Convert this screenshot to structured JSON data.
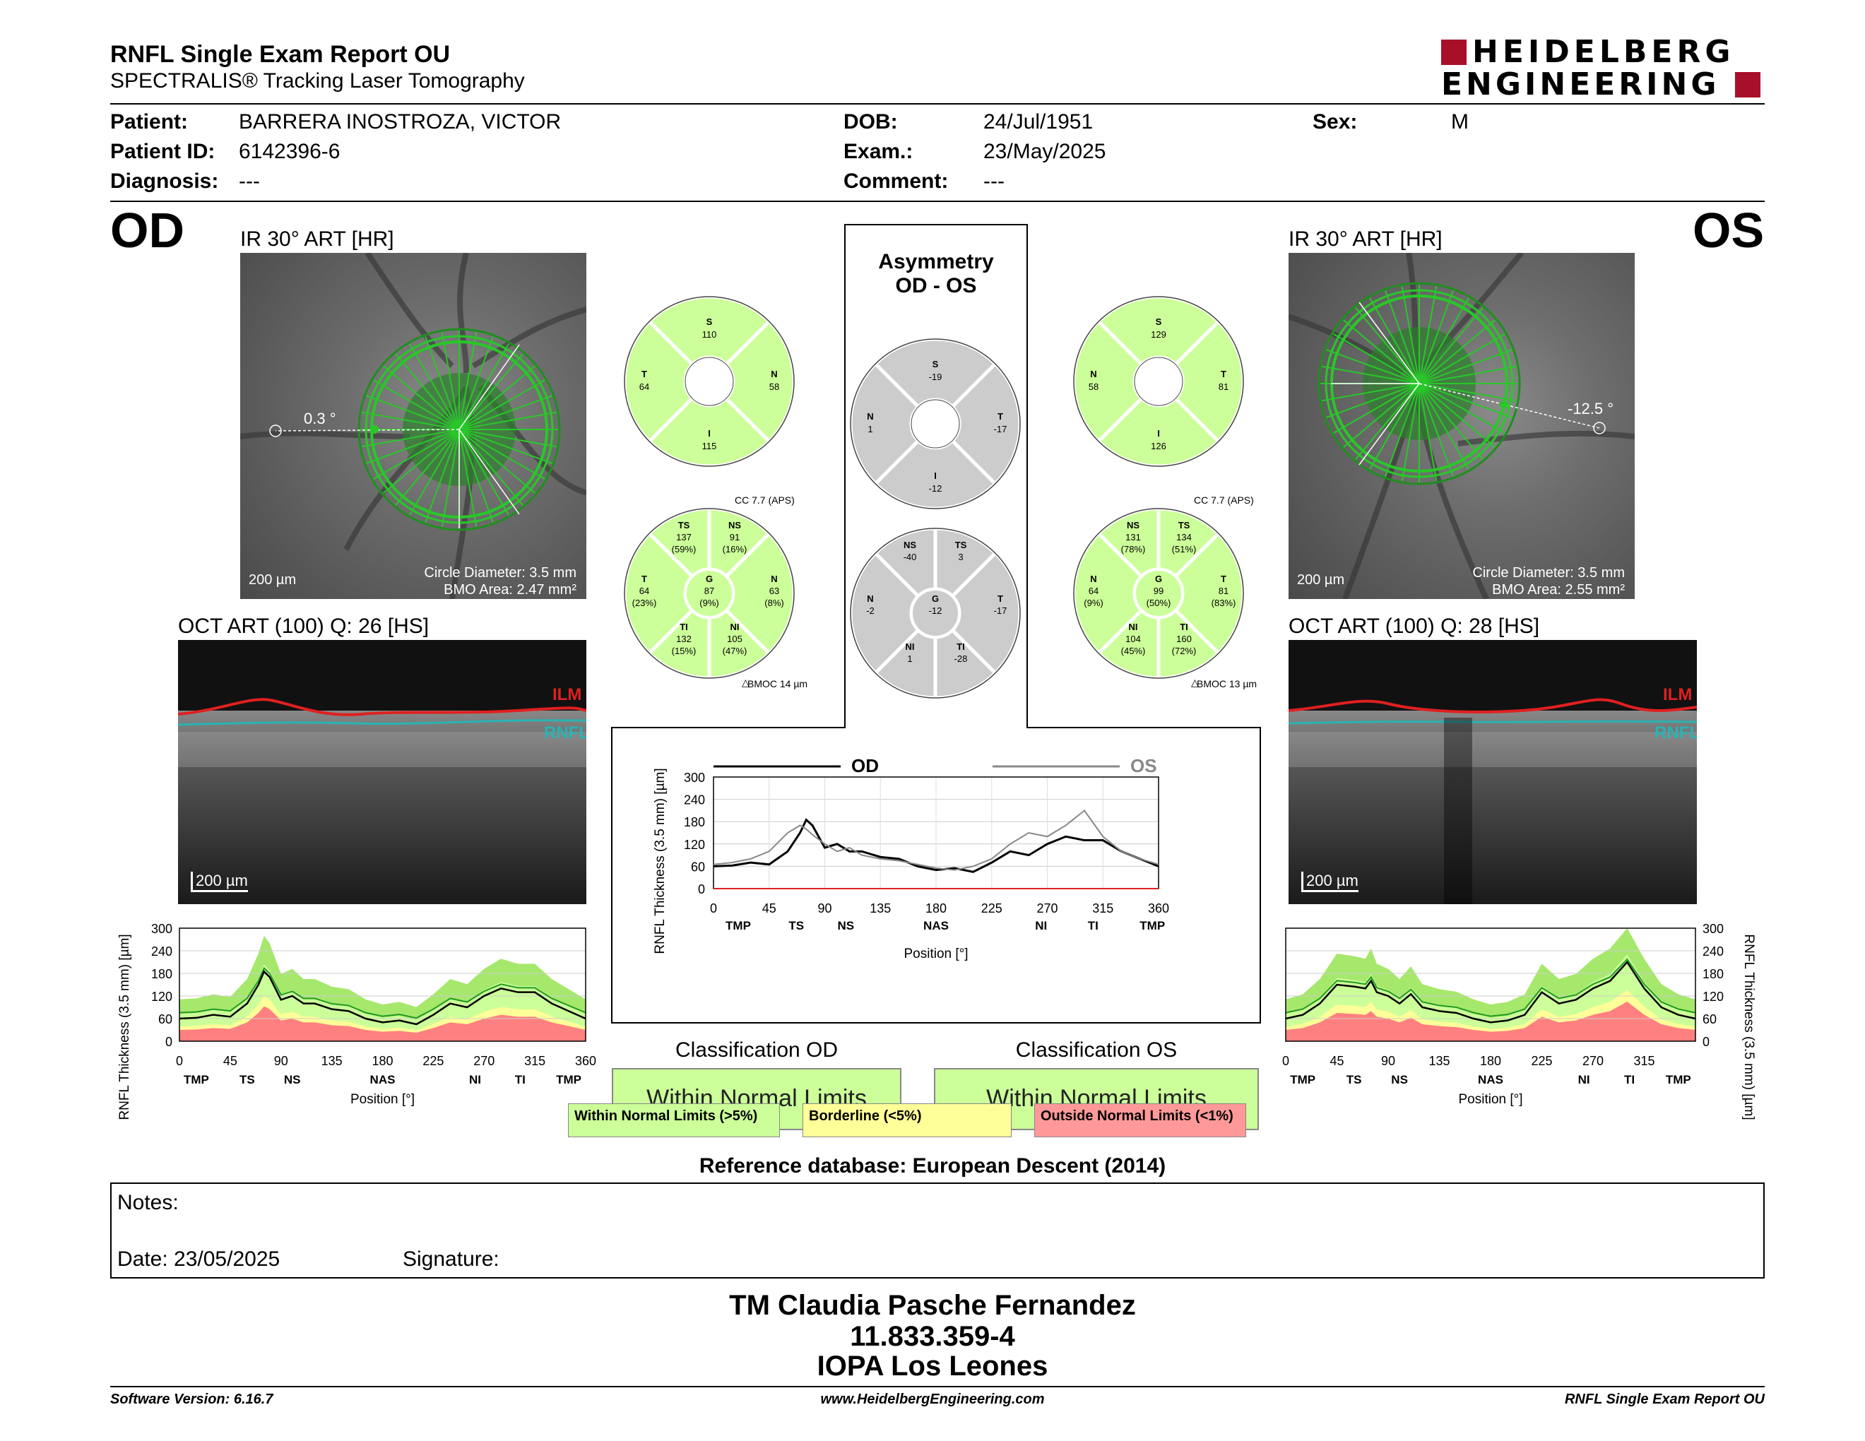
{
  "header": {
    "title": "RNFL Single Exam Report OU",
    "subtitle": "SPECTRALIS® Tracking Laser Tomography",
    "logo_line1": "HEIDELBERG",
    "logo_line2": "ENGINEERING"
  },
  "patient": {
    "name_label": "Patient:",
    "name": "BARRERA INOSTROZA, VICTOR",
    "id_label": "Patient ID:",
    "id": "6142396-6",
    "diag_label": "Diagnosis:",
    "diag": "---",
    "dob_label": "DOB:",
    "dob": "24/Jul/1951",
    "exam_label": "Exam.:",
    "exam": "23/May/2025",
    "comment_label": "Comment:",
    "comment": "---",
    "sex_label": "Sex:",
    "sex": "M"
  },
  "od": {
    "eye": "OD",
    "ir_title": "IR 30° ART [HR]",
    "angle": "0.3 °",
    "scale": "200 µm",
    "circle_diameter": "Circle Diameter: 3.5 mm",
    "bmo_area": "BMO Area: 2.47 mm²",
    "oct_title": "OCT ART (100) Q: 26 [HS]",
    "oct_scale": "200 µm",
    "ilm": "ILM",
    "rnfl": "RNFL",
    "sectors6": {
      "S": "110",
      "T": "64",
      "N": "58",
      "I": "115"
    },
    "cc": "CC 7.7 (APS)",
    "bmoc": "BMOC 14 µm",
    "sectors": {
      "TS": [
        "137",
        "(59%)"
      ],
      "NS": [
        "91",
        "(16%)"
      ],
      "T": [
        "64",
        "(23%)"
      ],
      "G": [
        "87",
        "(9%)"
      ],
      "N": [
        "63",
        "(8%)"
      ],
      "TI": [
        "132",
        "(15%)"
      ],
      "NI": [
        "105",
        "(47%)"
      ]
    },
    "classification_title": "Classification OD",
    "classification": "Within Normal Limits"
  },
  "os": {
    "eye": "OS",
    "ir_title": "IR 30° ART [HR]",
    "angle": "-12.5 °",
    "scale": "200 µm",
    "circle_diameter": "Circle Diameter: 3.5 mm",
    "bmo_area": "BMO Area: 2.55 mm²",
    "oct_title": "OCT ART (100) Q: 28 [HS]",
    "oct_scale": "200 µm",
    "ilm": "ILM",
    "rnfl": "RNFL",
    "sectors6": {
      "S": "129",
      "N": "58",
      "T": "81",
      "I": "126"
    },
    "cc": "CC 7.7 (APS)",
    "bmoc": "BMOC 13 µm",
    "sectors": {
      "NS": [
        "131",
        "(78%)"
      ],
      "TS": [
        "134",
        "(51%)"
      ],
      "N": [
        "64",
        "(9%)"
      ],
      "G": [
        "99",
        "(50%)"
      ],
      "T": [
        "81",
        "(83%)"
      ],
      "NI": [
        "104",
        "(45%)"
      ],
      "TI": [
        "160",
        "(72%)"
      ]
    },
    "classification_title": "Classification OS",
    "classification": "Within Normal Limits"
  },
  "asymmetry": {
    "title1": "Asymmetry",
    "title2": "OD - OS",
    "sectors6": {
      "S": "-19",
      "N": "1",
      "T": "-17",
      "I": "-12"
    },
    "sectors": {
      "NS": "-40",
      "TS": "3",
      "N": "-2",
      "G": "-12",
      "T": "-17",
      "NI": "1",
      "TI": "-28"
    }
  },
  "legend": {
    "wnl": "Within Normal Limits (>5%)",
    "bl": "Borderline (<5%)",
    "onl": "Outside Normal Limits (<1%)"
  },
  "colors": {
    "wnl": "#ccff99",
    "bl": "#ffff99",
    "onl": "#ff9999",
    "green": "#1f9a1f",
    "gray": "#cccccc"
  },
  "reference_db": "Reference database: European Descent (2014)",
  "notes": {
    "label": "Notes:",
    "date": "Date: 23/05/2025",
    "signature": "Signature:"
  },
  "operator": {
    "line1": "TM Claudia Pasche Fernandez",
    "line2": "11.833.359-4",
    "line3": "IOPA Los Leones"
  },
  "footer": {
    "left": "Software Version: 6.16.7",
    "center": "www.HeidelbergEngineering.com",
    "right": "RNFL Single Exam Report OU"
  },
  "chart_data": [
    {
      "type": "line",
      "title": "",
      "legend": [
        "OD",
        "OS"
      ],
      "xlabel": "Position [°]",
      "ylabel": "RNFL Thickness (3.5 mm) [µm]",
      "xlim": [
        0,
        360
      ],
      "ylim": [
        0,
        300
      ],
      "xticks": [
        0,
        45,
        90,
        135,
        180,
        225,
        270,
        315,
        360
      ],
      "yticks": [
        0,
        60,
        120,
        180,
        240,
        300
      ],
      "sector_labels": [
        {
          "label": "TMP",
          "x": 20
        },
        {
          "label": "TS",
          "x": 67
        },
        {
          "label": "NS",
          "x": 107
        },
        {
          "label": "NAS",
          "x": 180
        },
        {
          "label": "NI",
          "x": 265
        },
        {
          "label": "TI",
          "x": 307
        },
        {
          "label": "TMP",
          "x": 355
        }
      ],
      "x": [
        0,
        15,
        30,
        45,
        60,
        70,
        75,
        80,
        90,
        100,
        110,
        120,
        135,
        150,
        165,
        180,
        195,
        210,
        225,
        240,
        255,
        270,
        285,
        300,
        315,
        330,
        345,
        360
      ],
      "series": [
        {
          "name": "OD",
          "values": [
            60,
            62,
            70,
            65,
            100,
            150,
            185,
            170,
            110,
            120,
            100,
            100,
            85,
            80,
            60,
            50,
            55,
            45,
            70,
            100,
            90,
            120,
            140,
            130,
            130,
            100,
            80,
            60
          ]
        },
        {
          "name": "OS",
          "values": [
            65,
            70,
            80,
            100,
            150,
            170,
            160,
            145,
            120,
            100,
            110,
            90,
            80,
            75,
            65,
            55,
            50,
            60,
            80,
            120,
            150,
            140,
            170,
            210,
            140,
            100,
            80,
            65
          ]
        }
      ]
    },
    {
      "type": "area",
      "title": "",
      "series_name": "OD",
      "xlabel": "Position [°]",
      "ylabel": "RNFL Thickness (3.5 mm) [µm]",
      "xlim": [
        0,
        360
      ],
      "ylim": [
        0,
        300
      ],
      "xticks": [
        0,
        45,
        90,
        135,
        180,
        225,
        270,
        315,
        360
      ],
      "yticks": [
        0,
        60,
        120,
        180,
        240,
        300
      ],
      "sector_labels": [
        {
          "label": "TMP",
          "x": 15
        },
        {
          "label": "TS",
          "x": 60
        },
        {
          "label": "NS",
          "x": 100
        },
        {
          "label": "NAS",
          "x": 180
        },
        {
          "label": "NI",
          "x": 262
        },
        {
          "label": "TI",
          "x": 302
        },
        {
          "label": "TMP",
          "x": 345
        }
      ],
      "x": [
        0,
        15,
        30,
        45,
        60,
        70,
        75,
        80,
        90,
        100,
        110,
        120,
        135,
        150,
        165,
        180,
        195,
        210,
        225,
        240,
        255,
        270,
        285,
        300,
        315,
        330,
        345,
        360
      ],
      "measured": [
        60,
        62,
        70,
        65,
        100,
        150,
        185,
        170,
        110,
        120,
        100,
        100,
        85,
        80,
        60,
        50,
        55,
        45,
        70,
        100,
        90,
        120,
        140,
        130,
        130,
        100,
        80,
        60
      ]
    },
    {
      "type": "area",
      "title": "",
      "series_name": "OS",
      "xlabel": "Position [°]",
      "ylabel": "RNFL Thickness (3.5 mm) [µm]",
      "xlim": [
        0,
        360
      ],
      "ylim": [
        0,
        300
      ],
      "xticks": [
        0,
        45,
        90,
        135,
        180,
        225,
        270,
        315
      ],
      "yticks": [
        0,
        60,
        120,
        180,
        240,
        300
      ],
      "sector_labels": [
        {
          "label": "TMP",
          "x": 15
        },
        {
          "label": "TS",
          "x": 60
        },
        {
          "label": "NS",
          "x": 100
        },
        {
          "label": "NAS",
          "x": 180
        },
        {
          "label": "NI",
          "x": 262
        },
        {
          "label": "TI",
          "x": 302
        },
        {
          "label": "TMP",
          "x": 345
        }
      ],
      "x": [
        0,
        15,
        30,
        45,
        60,
        70,
        75,
        80,
        90,
        100,
        110,
        120,
        135,
        150,
        165,
        180,
        195,
        210,
        225,
        240,
        255,
        270,
        285,
        300,
        315,
        330,
        345,
        360
      ],
      "measured": [
        60,
        70,
        100,
        150,
        145,
        140,
        160,
        130,
        120,
        100,
        125,
        90,
        80,
        75,
        60,
        50,
        55,
        70,
        130,
        100,
        110,
        140,
        160,
        210,
        140,
        90,
        70,
        60
      ]
    }
  ]
}
